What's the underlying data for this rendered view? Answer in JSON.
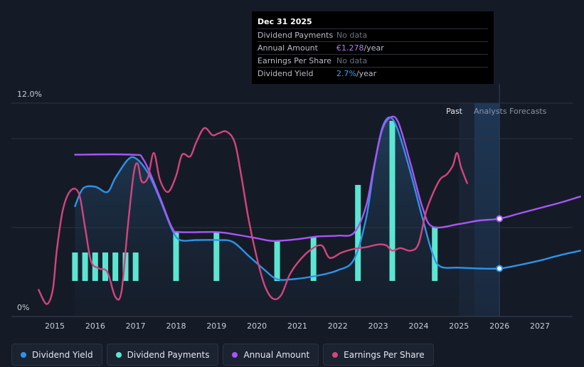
{
  "tooltip": {
    "date": "Dec 31 2025",
    "rows": [
      {
        "label": "Dividend Payments",
        "value": "No data"
      },
      {
        "label": "Annual Amount",
        "value": "€1.278",
        "unit": "/year"
      },
      {
        "label": "Earnings Per Share",
        "value": "No data"
      },
      {
        "label": "Dividend Yield",
        "value": "2.7%",
        "unit": "/year"
      }
    ]
  },
  "legend": [
    {
      "label": "Dividend Yield",
      "color": "#2e93e8"
    },
    {
      "label": "Dividend Payments",
      "color": "#5ce6d2"
    },
    {
      "label": "Annual Amount",
      "color": "#a855f7"
    },
    {
      "label": "Earnings Per Share",
      "color": "#d3457f"
    }
  ],
  "chart_data": {
    "type": "line",
    "title": "",
    "ylabel": "",
    "ylim": [
      0,
      12
    ],
    "y_tick_labels": [
      "12.0%",
      "0%"
    ],
    "x_tick_labels": [
      "2015",
      "2016",
      "2017",
      "2018",
      "2019",
      "2020",
      "2021",
      "2022",
      "2023",
      "2024",
      "2025",
      "2026",
      "2027"
    ],
    "xlim": [
      2014.5,
      2028.0
    ],
    "grid": true,
    "region_labels": {
      "past": "Past",
      "forecast": "Analysts Forecasts"
    },
    "forecast_start": 2026.0,
    "hover_x": 2026.0,
    "series": [
      {
        "name": "Dividend Yield",
        "color": "#2e93e8",
        "unit": "%",
        "points": [
          [
            2015.5,
            6.2
          ],
          [
            2015.7,
            7.2
          ],
          [
            2016.0,
            7.3
          ],
          [
            2016.3,
            7.0
          ],
          [
            2016.5,
            7.8
          ],
          [
            2016.8,
            8.8
          ],
          [
            2017.0,
            8.9
          ],
          [
            2017.3,
            8.1
          ],
          [
            2017.6,
            6.6
          ],
          [
            2017.9,
            4.9
          ],
          [
            2018.1,
            4.3
          ],
          [
            2018.5,
            4.3
          ],
          [
            2019.0,
            4.3
          ],
          [
            2019.4,
            4.2
          ],
          [
            2019.8,
            3.4
          ],
          [
            2020.2,
            2.6
          ],
          [
            2020.5,
            2.1
          ],
          [
            2020.9,
            2.1
          ],
          [
            2021.5,
            2.3
          ],
          [
            2022.0,
            2.6
          ],
          [
            2022.4,
            3.2
          ],
          [
            2022.7,
            5.5
          ],
          [
            2022.9,
            8.4
          ],
          [
            2023.1,
            10.6
          ],
          [
            2023.3,
            11.2
          ],
          [
            2023.5,
            10.4
          ],
          [
            2023.8,
            8.1
          ],
          [
            2024.1,
            5.5
          ],
          [
            2024.35,
            3.5
          ],
          [
            2024.55,
            2.8
          ],
          [
            2025.0,
            2.75
          ],
          [
            2025.5,
            2.7
          ],
          [
            2026.0,
            2.7
          ],
          [
            2026.5,
            2.9
          ],
          [
            2027.0,
            3.15
          ],
          [
            2027.5,
            3.45
          ],
          [
            2028.0,
            3.7
          ]
        ]
      },
      {
        "name": "Annual Amount",
        "color": "#a855f7",
        "unit": "%",
        "points": [
          [
            2015.5,
            9.1
          ],
          [
            2016.9,
            9.1
          ],
          [
            2017.2,
            8.8
          ],
          [
            2017.6,
            6.7
          ],
          [
            2017.9,
            5.0
          ],
          [
            2018.1,
            4.75
          ],
          [
            2019.0,
            4.75
          ],
          [
            2019.5,
            4.6
          ],
          [
            2020.0,
            4.4
          ],
          [
            2020.4,
            4.25
          ],
          [
            2021.0,
            4.35
          ],
          [
            2021.5,
            4.5
          ],
          [
            2022.0,
            4.55
          ],
          [
            2022.4,
            4.7
          ],
          [
            2022.7,
            6.2
          ],
          [
            2022.9,
            8.5
          ],
          [
            2023.1,
            10.5
          ],
          [
            2023.3,
            11.2
          ],
          [
            2023.5,
            10.9
          ],
          [
            2023.8,
            8.6
          ],
          [
            2024.1,
            6.1
          ],
          [
            2024.35,
            5.05
          ],
          [
            2025.0,
            5.2
          ],
          [
            2025.5,
            5.4
          ],
          [
            2026.0,
            5.5
          ],
          [
            2026.5,
            5.8
          ],
          [
            2027.0,
            6.1
          ],
          [
            2027.5,
            6.4
          ],
          [
            2028.0,
            6.75
          ]
        ]
      },
      {
        "name": "Earnings Per Share",
        "color": "#d3457f",
        "unit": "%",
        "points": [
          [
            2014.6,
            1.5
          ],
          [
            2014.8,
            0.7
          ],
          [
            2014.95,
            1.5
          ],
          [
            2015.05,
            3.7
          ],
          [
            2015.2,
            6.0
          ],
          [
            2015.4,
            7.1
          ],
          [
            2015.6,
            6.9
          ],
          [
            2015.75,
            5.0
          ],
          [
            2015.9,
            3.1
          ],
          [
            2016.1,
            2.7
          ],
          [
            2016.3,
            2.5
          ],
          [
            2016.5,
            1.1
          ],
          [
            2016.65,
            1.4
          ],
          [
            2016.8,
            4.9
          ],
          [
            2016.95,
            8.0
          ],
          [
            2017.05,
            8.6
          ],
          [
            2017.15,
            7.6
          ],
          [
            2017.3,
            7.8
          ],
          [
            2017.45,
            9.2
          ],
          [
            2017.6,
            7.7
          ],
          [
            2017.8,
            7.0
          ],
          [
            2018.0,
            7.9
          ],
          [
            2018.15,
            9.1
          ],
          [
            2018.35,
            9.0
          ],
          [
            2018.5,
            9.8
          ],
          [
            2018.7,
            10.6
          ],
          [
            2018.9,
            10.2
          ],
          [
            2019.05,
            10.3
          ],
          [
            2019.25,
            10.4
          ],
          [
            2019.45,
            9.8
          ],
          [
            2019.6,
            8.1
          ],
          [
            2019.8,
            5.4
          ],
          [
            2020.0,
            3.3
          ],
          [
            2020.2,
            1.7
          ],
          [
            2020.4,
            1.0
          ],
          [
            2020.6,
            1.2
          ],
          [
            2020.8,
            2.3
          ],
          [
            2021.0,
            3.0
          ],
          [
            2021.3,
            3.7
          ],
          [
            2021.6,
            4.0
          ],
          [
            2021.8,
            3.3
          ],
          [
            2022.1,
            3.6
          ],
          [
            2022.4,
            3.8
          ],
          [
            2022.7,
            3.9
          ],
          [
            2023.0,
            4.05
          ],
          [
            2023.2,
            4.0
          ],
          [
            2023.35,
            3.7
          ],
          [
            2023.55,
            3.85
          ],
          [
            2023.8,
            3.7
          ],
          [
            2024.0,
            4.1
          ],
          [
            2024.2,
            6.0
          ],
          [
            2024.5,
            7.6
          ],
          [
            2024.7,
            8.0
          ],
          [
            2024.85,
            8.5
          ],
          [
            2024.95,
            9.2
          ],
          [
            2025.05,
            8.4
          ],
          [
            2025.2,
            7.5
          ]
        ]
      },
      {
        "name": "Dividend Payments",
        "type": "bar",
        "color": "#5ce6d2",
        "bars": [
          [
            2015.5,
            3.6,
            2.0
          ],
          [
            2015.75,
            3.6,
            2.0
          ],
          [
            2016.0,
            3.6,
            2.0
          ],
          [
            2016.25,
            3.6,
            2.0
          ],
          [
            2016.5,
            3.6,
            2.0
          ],
          [
            2016.75,
            3.6,
            2.0
          ],
          [
            2017.0,
            3.6,
            2.0
          ],
          [
            2018.0,
            4.75,
            2.0
          ],
          [
            2019.0,
            4.75,
            2.0
          ],
          [
            2020.5,
            4.25,
            2.0
          ],
          [
            2021.4,
            4.5,
            2.0
          ],
          [
            2022.5,
            7.4,
            2.0
          ],
          [
            2023.35,
            11.0,
            2.0
          ],
          [
            2024.4,
            5.05,
            2.0
          ]
        ]
      }
    ],
    "markers": [
      {
        "series": "Annual Amount",
        "x": 2026.0,
        "y": 5.5
      },
      {
        "series": "Dividend Yield",
        "x": 2026.0,
        "y": 2.7
      }
    ]
  }
}
